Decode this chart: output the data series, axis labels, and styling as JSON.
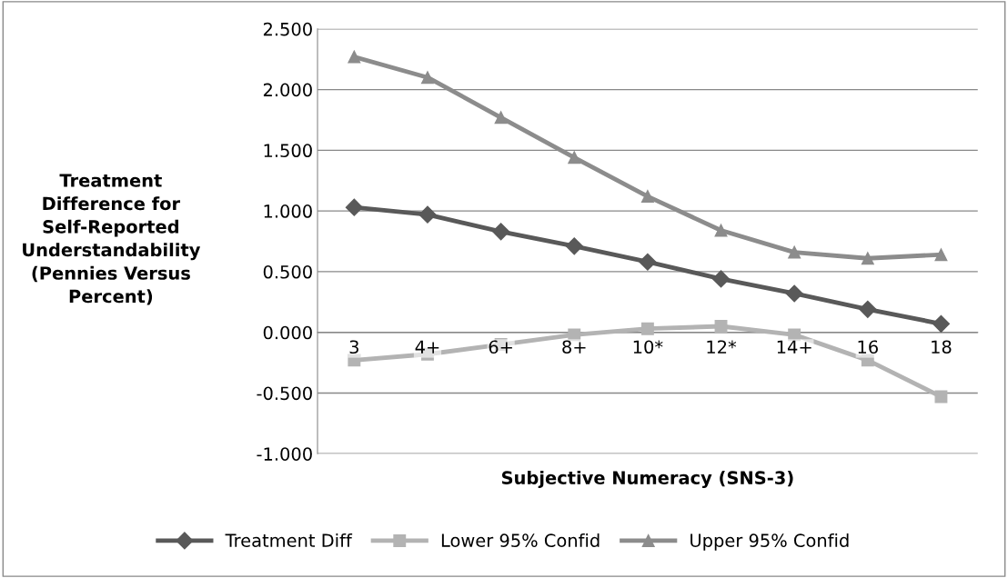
{
  "chart_data": {
    "type": "line",
    "xlabel": "Subjective Numeracy (SNS-3)",
    "ylabel": "Treatment Difference for Self-Reported Understandability (Pennies Versus Percent)",
    "categories": [
      "3",
      "4+",
      "6+",
      "8+",
      "10*",
      "12*",
      "14+",
      "16",
      "18"
    ],
    "series": [
      {
        "name": "Treatment Diff",
        "color": "#595959",
        "marker": "diamond",
        "values": [
          1.03,
          0.97,
          0.83,
          0.71,
          0.58,
          0.44,
          0.32,
          0.19,
          0.07
        ]
      },
      {
        "name": "Lower 95% Confid",
        "color": "#b3b3b3",
        "marker": "square",
        "values": [
          -0.23,
          -0.18,
          -0.1,
          -0.02,
          0.03,
          0.05,
          -0.02,
          -0.23,
          -0.53
        ]
      },
      {
        "name": "Upper 95% Confid",
        "color": "#8c8c8c",
        "marker": "triangle",
        "values": [
          2.27,
          2.1,
          1.77,
          1.44,
          1.12,
          0.84,
          0.66,
          0.61,
          0.64
        ]
      }
    ],
    "ylim": [
      -1.0,
      2.5
    ],
    "yticks": [
      {
        "value": -1.0,
        "label": "-1.000"
      },
      {
        "value": -0.5,
        "label": "-0.500"
      },
      {
        "value": 0.0,
        "label": "0.000"
      },
      {
        "value": 0.5,
        "label": "0.500"
      },
      {
        "value": 1.0,
        "label": "1.000"
      },
      {
        "value": 1.5,
        "label": "1.500"
      },
      {
        "value": 2.0,
        "label": "2.000"
      },
      {
        "value": 2.5,
        "label": "2.500"
      }
    ],
    "grid": "y",
    "legend": "bottom",
    "line_style": "solid"
  }
}
